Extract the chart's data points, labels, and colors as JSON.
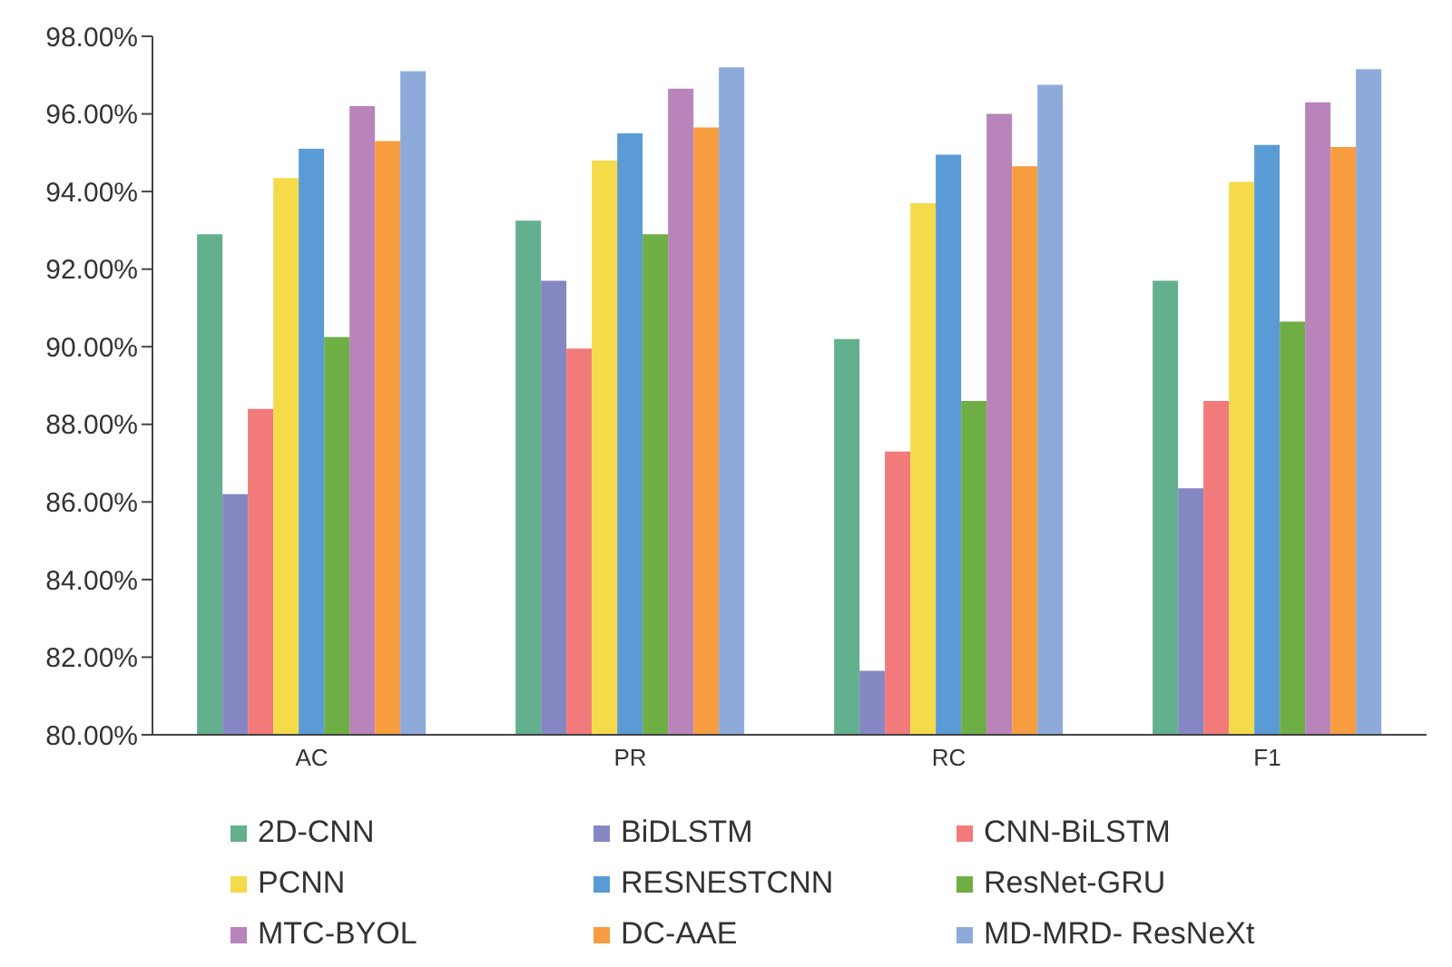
{
  "chart_data": {
    "type": "bar",
    "categories": [
      "AC",
      "PR",
      "RC",
      "F1"
    ],
    "series": [
      {
        "name": "2D-CNN",
        "color": "#63b08f",
        "values": [
          92.9,
          93.25,
          90.2,
          91.7
        ]
      },
      {
        "name": "BiDLSTM",
        "color": "#8587c2",
        "values": [
          86.2,
          91.7,
          81.65,
          86.35
        ]
      },
      {
        "name": "CNN-BiLSTM",
        "color": "#f27a7a",
        "values": [
          88.4,
          89.95,
          87.3,
          88.6
        ]
      },
      {
        "name": "PCNN",
        "color": "#f5da4a",
        "values": [
          94.35,
          94.8,
          93.7,
          94.25
        ]
      },
      {
        "name": "RESNESTCNN",
        "color": "#5a9bd5",
        "values": [
          95.1,
          95.5,
          94.95,
          95.2
        ]
      },
      {
        "name": "ResNet-GRU",
        "color": "#6fae45",
        "values": [
          90.25,
          92.9,
          88.6,
          90.65
        ]
      },
      {
        "name": "MTC-BYOL",
        "color": "#b884bb",
        "values": [
          96.2,
          96.65,
          96.0,
          96.3
        ]
      },
      {
        "name": "DC-AAE",
        "color": "#f79d40",
        "values": [
          95.3,
          95.65,
          94.65,
          95.15
        ]
      },
      {
        "name": "MD-MRD- ResNeXt",
        "color": "#8eaadb",
        "values": [
          97.1,
          97.2,
          96.75,
          97.15
        ]
      }
    ],
    "ylim": [
      80,
      98
    ],
    "yticks": [
      {
        "value": 80,
        "label": "80.00%"
      },
      {
        "value": 82,
        "label": "82.00%"
      },
      {
        "value": 84,
        "label": "84.00%"
      },
      {
        "value": 86,
        "label": "86.00%"
      },
      {
        "value": 88,
        "label": "88.00%"
      },
      {
        "value": 90,
        "label": "90.00%"
      },
      {
        "value": 92,
        "label": "92.00%"
      },
      {
        "value": 94,
        "label": "94.00%"
      },
      {
        "value": 96,
        "label": "96.00%"
      },
      {
        "value": 98,
        "label": "98.00%"
      }
    ],
    "grid": false,
    "legend": "bottom"
  }
}
